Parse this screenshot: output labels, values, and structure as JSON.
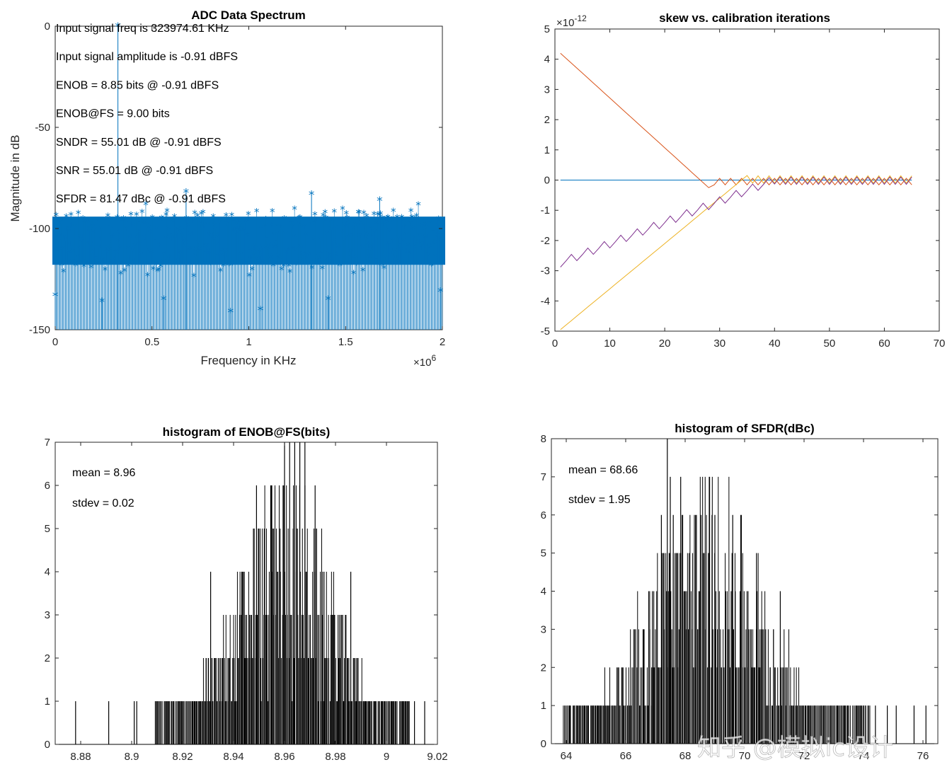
{
  "watermark": "知乎 @模拟ic设计",
  "chart_data": [
    {
      "id": "spectrum",
      "type": "scatter",
      "title": "ADC Data Spectrum",
      "xlabel": "Frequency in KHz",
      "ylabel": "Magnitude in dB",
      "x_exponent": "×10",
      "x_exponent_power": "6",
      "xlim": [
        0,
        2000000
      ],
      "ylim": [
        -150,
        0
      ],
      "xticks": [
        0,
        0.5,
        1,
        1.5,
        2
      ],
      "xtick_labels": [
        "0",
        "0.5",
        "1",
        "1.5",
        "2"
      ],
      "yticks": [
        0,
        -50,
        -100,
        -150
      ],
      "ytick_labels": [
        "0",
        "-50",
        "-100",
        "-150"
      ],
      "color": "#0072BD",
      "noise_floor_band_db": [
        -120,
        -92
      ],
      "peaks": [
        {
          "x": 323974.61,
          "y": 0
        },
        {
          "x": 676000,
          "y": -82
        },
        {
          "x": 1324000,
          "y": -83
        },
        {
          "x": 1676000,
          "y": -86
        }
      ],
      "low_spurs": [
        {
          "x": 906000,
          "y": -141
        },
        {
          "x": 1060000,
          "y": -140
        },
        {
          "x": 242000,
          "y": -136
        },
        {
          "x": 560000,
          "y": -135
        },
        {
          "x": 1410000,
          "y": -135
        },
        {
          "x": 1990000,
          "y": -131
        },
        {
          "x": 0,
          "y": -133
        }
      ],
      "annotations": [
        "Input signal freq is 323974.61 KHz",
        "Input signal amplitude is -0.91 dBFS",
        "ENOB = 8.85 bits @ -0.91 dBFS",
        "ENOB@FS = 9.00 bits",
        "SNDR = 55.01 dB @ -0.91 dBFS",
        "SNR = 55.01 dB @ -0.91 dBFS",
        "SFDR = 81.47 dBc @ -0.91 dBFS"
      ]
    },
    {
      "id": "skew",
      "type": "line",
      "title": "skew vs. calibration iterations",
      "y_exponent": "×10",
      "y_exponent_power": "-12",
      "xlim": [
        0,
        70
      ],
      "ylim": [
        -5,
        5
      ],
      "xticks": [
        0,
        10,
        20,
        30,
        40,
        50,
        60,
        70
      ],
      "xtick_labels": [
        "0",
        "10",
        "20",
        "30",
        "40",
        "50",
        "60",
        "70"
      ],
      "yticks": [
        5,
        4,
        3,
        2,
        1,
        0,
        -1,
        -2,
        -3,
        -4,
        -5
      ],
      "ytick_labels": [
        "5",
        "4",
        "3",
        "2",
        "1",
        "0",
        "-1",
        "-2",
        "-3",
        "-4",
        "-5"
      ],
      "series": [
        {
          "color": "#0072BD",
          "start": [
            1,
            0
          ],
          "end": [
            65,
            0
          ],
          "kind": "flat"
        },
        {
          "color": "#D95319",
          "start": [
            1,
            4.2
          ],
          "end": [
            28,
            -0.25
          ],
          "kind": "descend",
          "oscillation_amplitude": 0.12
        },
        {
          "color": "#EDB120",
          "start": [
            1,
            -4.95
          ],
          "end": [
            35,
            0.15
          ],
          "kind": "ascend",
          "oscillation_amplitude": 0.12
        },
        {
          "color": "#7E2F8E",
          "start": [
            1,
            -2.8
          ],
          "end": [
            40,
            -0.05
          ],
          "kind": "stair",
          "oscillation_amplitude": 0.12
        }
      ],
      "x_end": 65
    },
    {
      "id": "hist_enob",
      "type": "bar",
      "title": "histogram of ENOB@FS(bits)",
      "xlim": [
        8.87,
        9.02
      ],
      "ylim": [
        0,
        7
      ],
      "xticks": [
        8.88,
        8.9,
        8.92,
        8.94,
        8.96,
        8.98,
        9,
        9.02
      ],
      "xtick_labels": [
        "8.88",
        "8.9",
        "8.92",
        "8.94",
        "8.96",
        "8.98",
        "9",
        "9.02"
      ],
      "yticks": [
        0,
        1,
        2,
        3,
        4,
        5,
        6,
        7
      ],
      "ytick_labels": [
        "0",
        "1",
        "2",
        "3",
        "4",
        "5",
        "6",
        "7"
      ],
      "mean": 8.96,
      "stdev": 0.02,
      "mean_text": "mean = 8.96",
      "stdev_text": "stdev = 0.02",
      "bar_range": [
        8.909,
        9.009
      ],
      "isolated_bars": [
        {
          "x": 8.878,
          "count": 1
        },
        {
          "x": 8.891,
          "count": 1
        },
        {
          "x": 8.901,
          "count": 1
        },
        {
          "x": 8.902,
          "count": 1
        },
        {
          "x": 9.015,
          "count": 1
        },
        {
          "x": 9.011,
          "count": 1
        }
      ],
      "peak_bars": [
        {
          "x": 8.96,
          "count": 7
        },
        {
          "x": 8.962,
          "count": 7
        },
        {
          "x": 8.964,
          "count": 7
        },
        {
          "x": 8.966,
          "count": 7
        },
        {
          "x": 8.968,
          "count": 7
        },
        {
          "x": 8.972,
          "count": 6
        },
        {
          "x": 8.949,
          "count": 6
        },
        {
          "x": 8.955,
          "count": 6
        },
        {
          "x": 8.931,
          "count": 4
        },
        {
          "x": 8.986,
          "count": 4
        }
      ]
    },
    {
      "id": "hist_sfdr",
      "type": "bar",
      "title": "histogram of SFDR(dBc)",
      "xlim": [
        63.5,
        76.5
      ],
      "ylim": [
        0,
        8
      ],
      "xticks": [
        64,
        66,
        68,
        70,
        72,
        74,
        76
      ],
      "xtick_labels": [
        "64",
        "66",
        "68",
        "70",
        "72",
        "74",
        "76"
      ],
      "yticks": [
        0,
        1,
        2,
        3,
        4,
        5,
        6,
        7,
        8
      ],
      "ytick_labels": [
        "0",
        "1",
        "2",
        "3",
        "4",
        "5",
        "6",
        "7",
        "8"
      ],
      "mean": 68.66,
      "stdev": 1.95,
      "mean_text": "mean = 68.66",
      "stdev_text": "stdev = 1.95",
      "bar_range": [
        63.9,
        74.2
      ],
      "isolated_bars": [
        {
          "x": 74.8,
          "count": 1
        },
        {
          "x": 75.1,
          "count": 1
        },
        {
          "x": 75.7,
          "count": 1
        },
        {
          "x": 76.1,
          "count": 1
        },
        {
          "x": 74.4,
          "count": 1
        }
      ],
      "peak_bars": [
        {
          "x": 67.4,
          "count": 8
        },
        {
          "x": 67.5,
          "count": 7
        },
        {
          "x": 67.2,
          "count": 6
        },
        {
          "x": 67.6,
          "count": 6
        },
        {
          "x": 67.85,
          "count": 7
        },
        {
          "x": 68.35,
          "count": 6
        },
        {
          "x": 69.0,
          "count": 6
        },
        {
          "x": 69.6,
          "count": 6
        },
        {
          "x": 68.8,
          "count": 5
        },
        {
          "x": 70.4,
          "count": 5
        },
        {
          "x": 66.9,
          "count": 4
        },
        {
          "x": 71.2,
          "count": 4
        }
      ]
    }
  ]
}
